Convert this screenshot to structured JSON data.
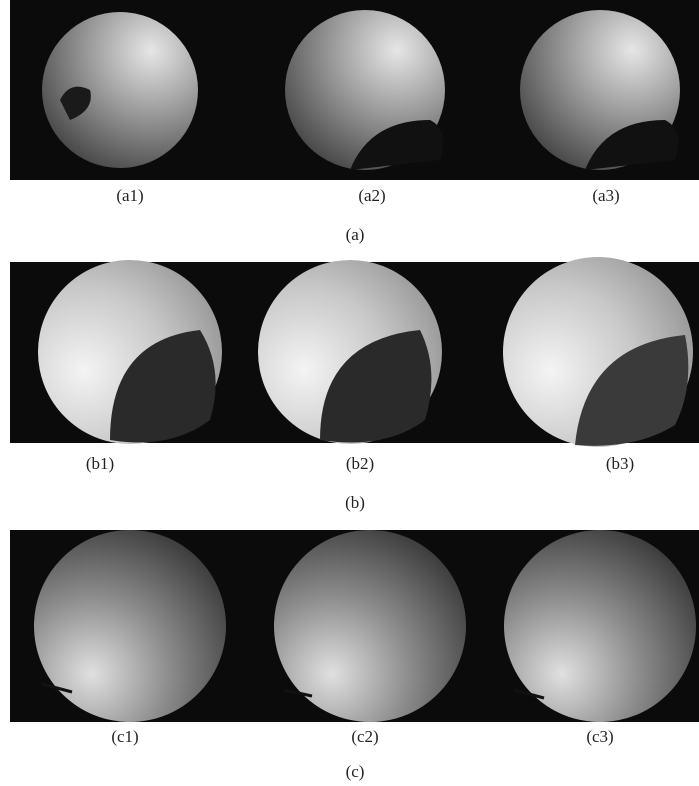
{
  "panels": [
    {
      "label": "(a)",
      "images": [
        {
          "label": "(a1)"
        },
        {
          "label": "(a2)"
        },
        {
          "label": "(a3)"
        }
      ]
    },
    {
      "label": "(b)",
      "images": [
        {
          "label": "(b1)"
        },
        {
          "label": "(b2)"
        },
        {
          "label": "(b3)"
        }
      ]
    },
    {
      "label": "(c)",
      "images": [
        {
          "label": "(c1)"
        },
        {
          "label": "(c2)"
        },
        {
          "label": "(c3)"
        }
      ]
    }
  ]
}
